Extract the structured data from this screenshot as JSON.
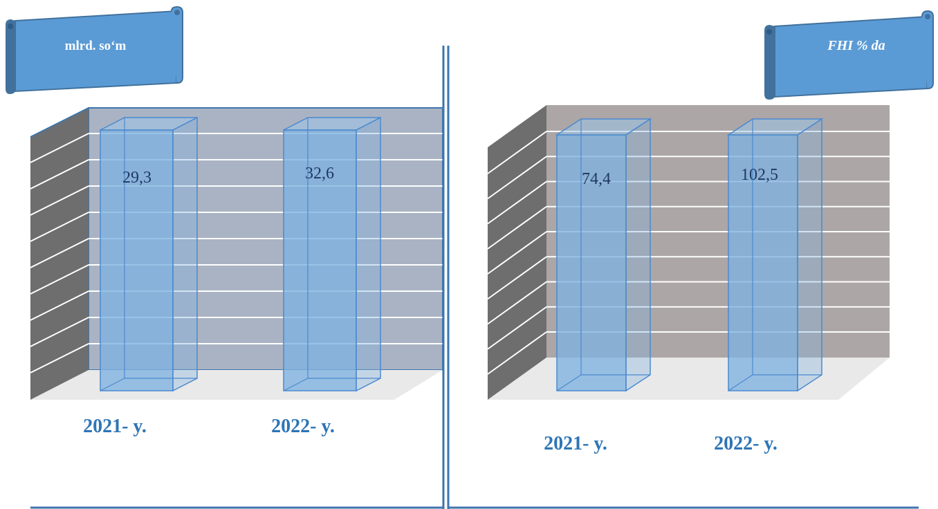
{
  "colors": {
    "bar_fill": "#7fb2e0",
    "bar_edge": "#4a89d0",
    "frame_blue": "#3d75ae",
    "scroll_fill": "#5b9bd5",
    "scroll_edge": "#41719c",
    "left_back_wall": "#aab3c3",
    "right_back_wall": "#aca6a6",
    "side_wall": "#6e6e6e",
    "floor": "#e9e9e9",
    "grid_line": "#ffffff",
    "label_text": "#1f3864",
    "axis_text": "#2e75b6"
  },
  "chart_data": [
    {
      "type": "bar",
      "title": "mlrd. so‘m",
      "categories": [
        "2021- y.",
        "2022- y."
      ],
      "values": [
        29.3,
        32.6
      ],
      "value_labels": [
        "29,3",
        "32,6"
      ]
    },
    {
      "type": "bar",
      "title": "FHI % da",
      "categories": [
        "2021- y.",
        "2022- y."
      ],
      "values": [
        74.4,
        102.5
      ],
      "value_labels": [
        "74,4",
        "102,5"
      ]
    }
  ]
}
